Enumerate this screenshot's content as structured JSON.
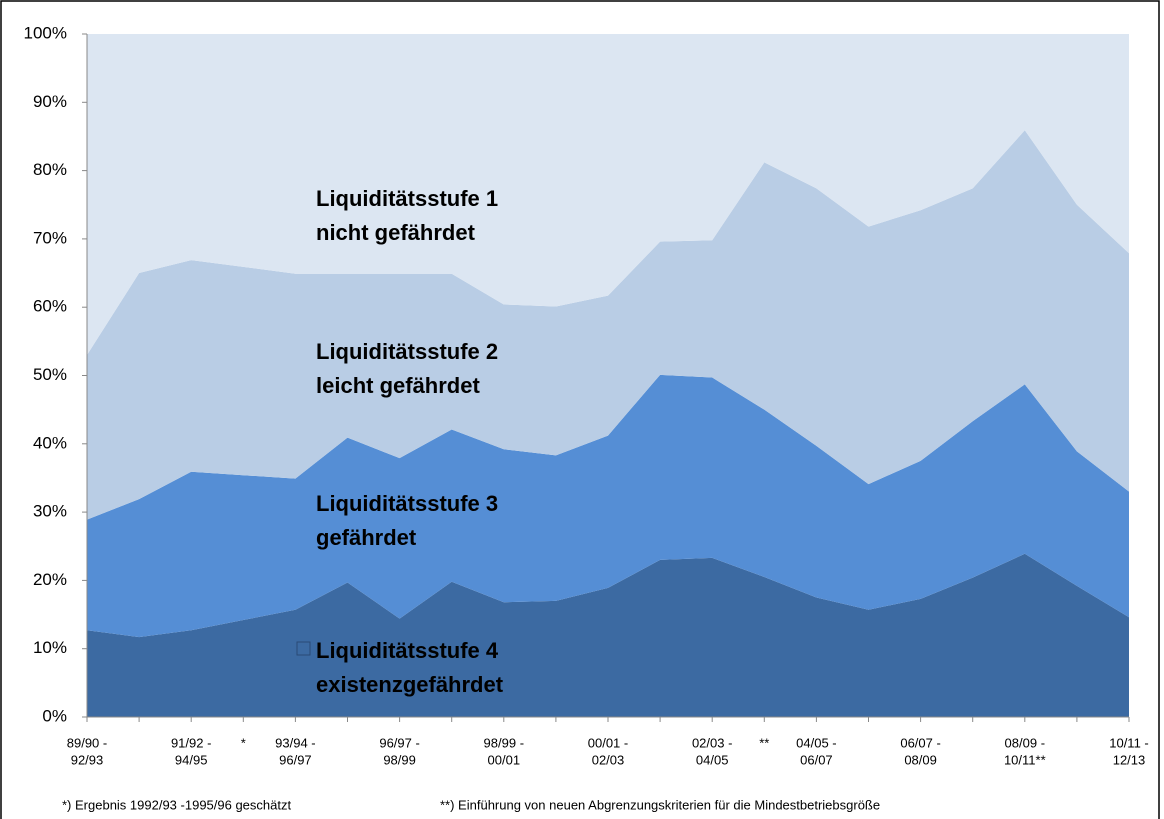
{
  "chart_data": {
    "type": "stacked_area",
    "categories": [
      [
        "89/90 -",
        "92/93"
      ],
      null,
      [
        "91/92 -",
        "94/95"
      ],
      [
        "*"
      ],
      [
        "93/94 -",
        "96/97"
      ],
      null,
      [
        "96/97 -",
        "98/99"
      ],
      null,
      [
        "98/99 -",
        "00/01"
      ],
      null,
      [
        "00/01 -",
        "02/03"
      ],
      null,
      [
        "02/03 -",
        "04/05"
      ],
      [
        "**"
      ],
      [
        "04/05 -",
        "06/07"
      ],
      null,
      [
        "06/07 -",
        "08/09"
      ],
      null,
      [
        "08/09 -",
        "10/11**"
      ],
      null,
      [
        "10/11 -",
        "12/13"
      ]
    ],
    "series": [
      {
        "name": "Liquiditätsstufe 4",
        "description": "existenzgefährdet",
        "color": "#3c6aa2",
        "values": [
          12.7,
          11.7,
          12.7,
          14.2,
          15.7,
          19.7,
          14.4,
          19.8,
          16.8,
          17.0,
          18.9,
          23.0,
          23.3,
          20.5,
          17.5,
          15.7,
          17.3,
          20.4,
          23.9,
          19.2,
          14.6
        ]
      },
      {
        "name": "Liquiditätsstufe 3",
        "description": "gefährdet",
        "color": "#558ed5",
        "values": [
          16.2,
          20.2,
          23.2,
          21.2,
          19.2,
          21.2,
          23.5,
          22.3,
          22.4,
          21.3,
          22.3,
          27.1,
          26.4,
          24.5,
          22.2,
          18.4,
          20.2,
          22.9,
          24.8,
          19.7,
          18.4
        ]
      },
      {
        "name": "Liquiditätsstufe 2",
        "description": "leicht gefährdet",
        "color": "#b9cde5",
        "values": [
          24.1,
          33.1,
          31.0,
          30.5,
          30.0,
          24.0,
          27.0,
          22.8,
          21.2,
          21.8,
          20.5,
          19.5,
          20.1,
          36.2,
          37.7,
          37.7,
          36.7,
          34.1,
          37.2,
          36.1,
          34.9
        ]
      },
      {
        "name": "Liquiditätsstufe 1",
        "description": "nicht gefährdet",
        "color": "#dce6f2",
        "values": [
          47.0,
          35.0,
          33.1,
          34.1,
          35.1,
          35.1,
          35.1,
          35.1,
          39.6,
          39.9,
          38.3,
          30.4,
          30.2,
          18.8,
          22.6,
          28.2,
          25.8,
          22.6,
          14.1,
          25.0,
          32.1
        ]
      }
    ],
    "ylim": [
      0,
      100
    ],
    "yticks": [
      {
        "value": 0,
        "label": "0%"
      },
      {
        "value": 10,
        "label": "10%"
      },
      {
        "value": 20,
        "label": "20%"
      },
      {
        "value": 30,
        "label": "30%"
      },
      {
        "value": 40,
        "label": "40%"
      },
      {
        "value": 50,
        "label": "50%"
      },
      {
        "value": 60,
        "label": "60%"
      },
      {
        "value": 70,
        "label": "70%"
      },
      {
        "value": 80,
        "label": "80%"
      },
      {
        "value": 90,
        "label": "90%"
      },
      {
        "value": 100,
        "label": "100%"
      }
    ],
    "footnotes": [
      "*) Ergebnis 1992/93 -1995/96 geschätzt",
      "**) Einführung von neuen Abgrenzungskriterien für die Mindestbetriebsgröße"
    ]
  }
}
